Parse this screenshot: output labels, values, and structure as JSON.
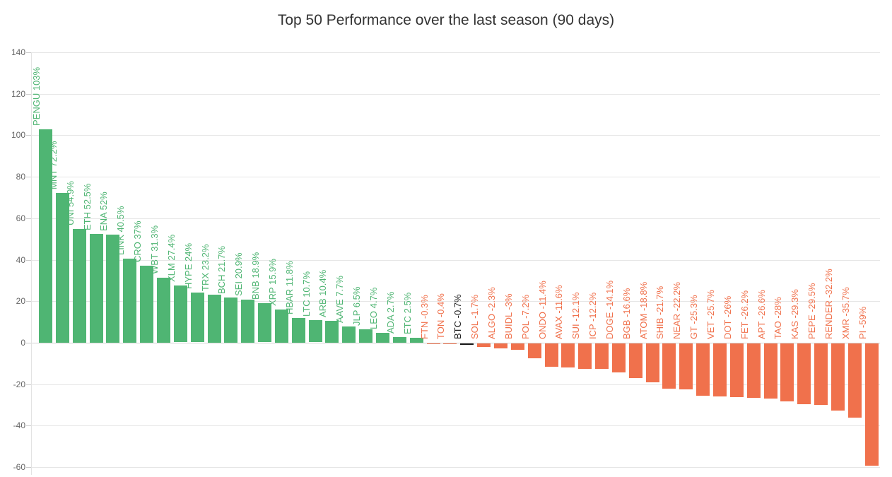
{
  "colors": {
    "background": "#ffffff",
    "title_text": "#333333",
    "tick_text": "#666666",
    "gridline": "#e6e6e6",
    "axis_line": "#cccccc"
  },
  "chart_data": {
    "type": "bar",
    "title": "Top 50 Performance over the last season (90 days)",
    "xlabel": "",
    "ylabel": "",
    "ylim": [
      -60,
      140
    ],
    "yticks": [
      140,
      120,
      100,
      80,
      60,
      40,
      20,
      0,
      -20,
      -40,
      -60
    ],
    "grid": true,
    "legend": "none",
    "bar_colors": {
      "positive": "#4fb573",
      "negative": "#f0714c",
      "btc": "#1a1a1a"
    },
    "bars": [
      {
        "ticker": "PENGU",
        "value": 103,
        "label": "PENGU 103%",
        "role": "positive"
      },
      {
        "ticker": "MNT",
        "value": 72.2,
        "label": "MNT 72.2%",
        "role": "positive"
      },
      {
        "ticker": "UNI",
        "value": 54.9,
        "label": "UNI 54.9%",
        "role": "positive"
      },
      {
        "ticker": "ETH",
        "value": 52.5,
        "label": "ETH 52.5%",
        "role": "positive"
      },
      {
        "ticker": "ENA",
        "value": 52,
        "label": "ENA 52%",
        "role": "positive"
      },
      {
        "ticker": "LINK",
        "value": 40.5,
        "label": "LINK 40.5%",
        "role": "positive"
      },
      {
        "ticker": "CRO",
        "value": 37,
        "label": "CRO 37%",
        "role": "positive"
      },
      {
        "ticker": "WBT",
        "value": 31.3,
        "label": "WBT 31.3%",
        "role": "positive"
      },
      {
        "ticker": "XLM",
        "value": 27.4,
        "label": "XLM 27.4%",
        "role": "positive"
      },
      {
        "ticker": "HYPE",
        "value": 24,
        "label": "HYPE 24%",
        "role": "positive"
      },
      {
        "ticker": "TRX",
        "value": 23.2,
        "label": "TRX 23.2%",
        "role": "positive"
      },
      {
        "ticker": "BCH",
        "value": 21.7,
        "label": "BCH 21.7%",
        "role": "positive"
      },
      {
        "ticker": "SEI",
        "value": 20.9,
        "label": "SEI 20.9%",
        "role": "positive"
      },
      {
        "ticker": "BNB",
        "value": 18.9,
        "label": "BNB 18.9%",
        "role": "positive"
      },
      {
        "ticker": "XRP",
        "value": 15.9,
        "label": "XRP 15.9%",
        "role": "positive"
      },
      {
        "ticker": "HBAR",
        "value": 11.8,
        "label": "HBAR 11.8%",
        "role": "positive"
      },
      {
        "ticker": "LTC",
        "value": 10.7,
        "label": "LTC 10.7%",
        "role": "positive"
      },
      {
        "ticker": "ARB",
        "value": 10.4,
        "label": "ARB 10.4%",
        "role": "positive"
      },
      {
        "ticker": "AAVE",
        "value": 7.7,
        "label": "AAVE 7.7%",
        "role": "positive"
      },
      {
        "ticker": "JLP",
        "value": 6.5,
        "label": "JLP 6.5%",
        "role": "positive"
      },
      {
        "ticker": "LEO",
        "value": 4.7,
        "label": "LEO 4.7%",
        "role": "positive"
      },
      {
        "ticker": "ADA",
        "value": 2.7,
        "label": "ADA 2.7%",
        "role": "positive"
      },
      {
        "ticker": "ETC",
        "value": 2.5,
        "label": "ETC 2.5%",
        "role": "positive"
      },
      {
        "ticker": "FTN",
        "value": -0.3,
        "label": "FTN -0.3%",
        "role": "negative"
      },
      {
        "ticker": "TON",
        "value": -0.4,
        "label": "TON -0.4%",
        "role": "negative"
      },
      {
        "ticker": "BTC",
        "value": -0.7,
        "label": "BTC -0.7%",
        "role": "btc"
      },
      {
        "ticker": "SOL",
        "value": -1.7,
        "label": "SOL -1.7%",
        "role": "negative"
      },
      {
        "ticker": "ALGO",
        "value": -2.3,
        "label": "ALGO -2.3%",
        "role": "negative"
      },
      {
        "ticker": "BUIDL",
        "value": -3,
        "label": "BUIDL -3%",
        "role": "negative"
      },
      {
        "ticker": "POL",
        "value": -7.2,
        "label": "POL -7.2%",
        "role": "negative"
      },
      {
        "ticker": "ONDO",
        "value": -11.4,
        "label": "ONDO -11.4%",
        "role": "negative"
      },
      {
        "ticker": "AVAX",
        "value": -11.6,
        "label": "AVAX -11.6%",
        "role": "negative"
      },
      {
        "ticker": "SUI",
        "value": -12.1,
        "label": "SUI -12.1%",
        "role": "negative"
      },
      {
        "ticker": "ICP",
        "value": -12.2,
        "label": "ICP -12.2%",
        "role": "negative"
      },
      {
        "ticker": "DOGE",
        "value": -14.1,
        "label": "DOGE -14.1%",
        "role": "negative"
      },
      {
        "ticker": "BGB",
        "value": -16.6,
        "label": "BGB -16.6%",
        "role": "negative"
      },
      {
        "ticker": "ATOM",
        "value": -18.8,
        "label": "ATOM -18.8%",
        "role": "negative"
      },
      {
        "ticker": "SHIB",
        "value": -21.7,
        "label": "SHIB -21.7%",
        "role": "negative"
      },
      {
        "ticker": "NEAR",
        "value": -22.2,
        "label": "NEAR -22.2%",
        "role": "negative"
      },
      {
        "ticker": "GT",
        "value": -25.3,
        "label": "GT -25.3%",
        "role": "negative"
      },
      {
        "ticker": "VET",
        "value": -25.7,
        "label": "VET -25.7%",
        "role": "negative"
      },
      {
        "ticker": "DOT",
        "value": -26,
        "label": "DOT -26%",
        "role": "negative"
      },
      {
        "ticker": "FET",
        "value": -26.2,
        "label": "FET -26.2%",
        "role": "negative"
      },
      {
        "ticker": "APT",
        "value": -26.6,
        "label": "APT -26.6%",
        "role": "negative"
      },
      {
        "ticker": "TAO",
        "value": -28,
        "label": "TAO -28%",
        "role": "negative"
      },
      {
        "ticker": "KAS",
        "value": -29.3,
        "label": "KAS -29.3%",
        "role": "negative"
      },
      {
        "ticker": "PEPE",
        "value": -29.5,
        "label": "PEPE -29.5%",
        "role": "negative"
      },
      {
        "ticker": "RENDER",
        "value": -32.2,
        "label": "RENDER -32.2%",
        "role": "negative"
      },
      {
        "ticker": "XMR",
        "value": -35.7,
        "label": "XMR -35.7%",
        "role": "negative"
      },
      {
        "ticker": "PI",
        "value": -59,
        "label": "PI -59%",
        "role": "negative"
      }
    ]
  }
}
